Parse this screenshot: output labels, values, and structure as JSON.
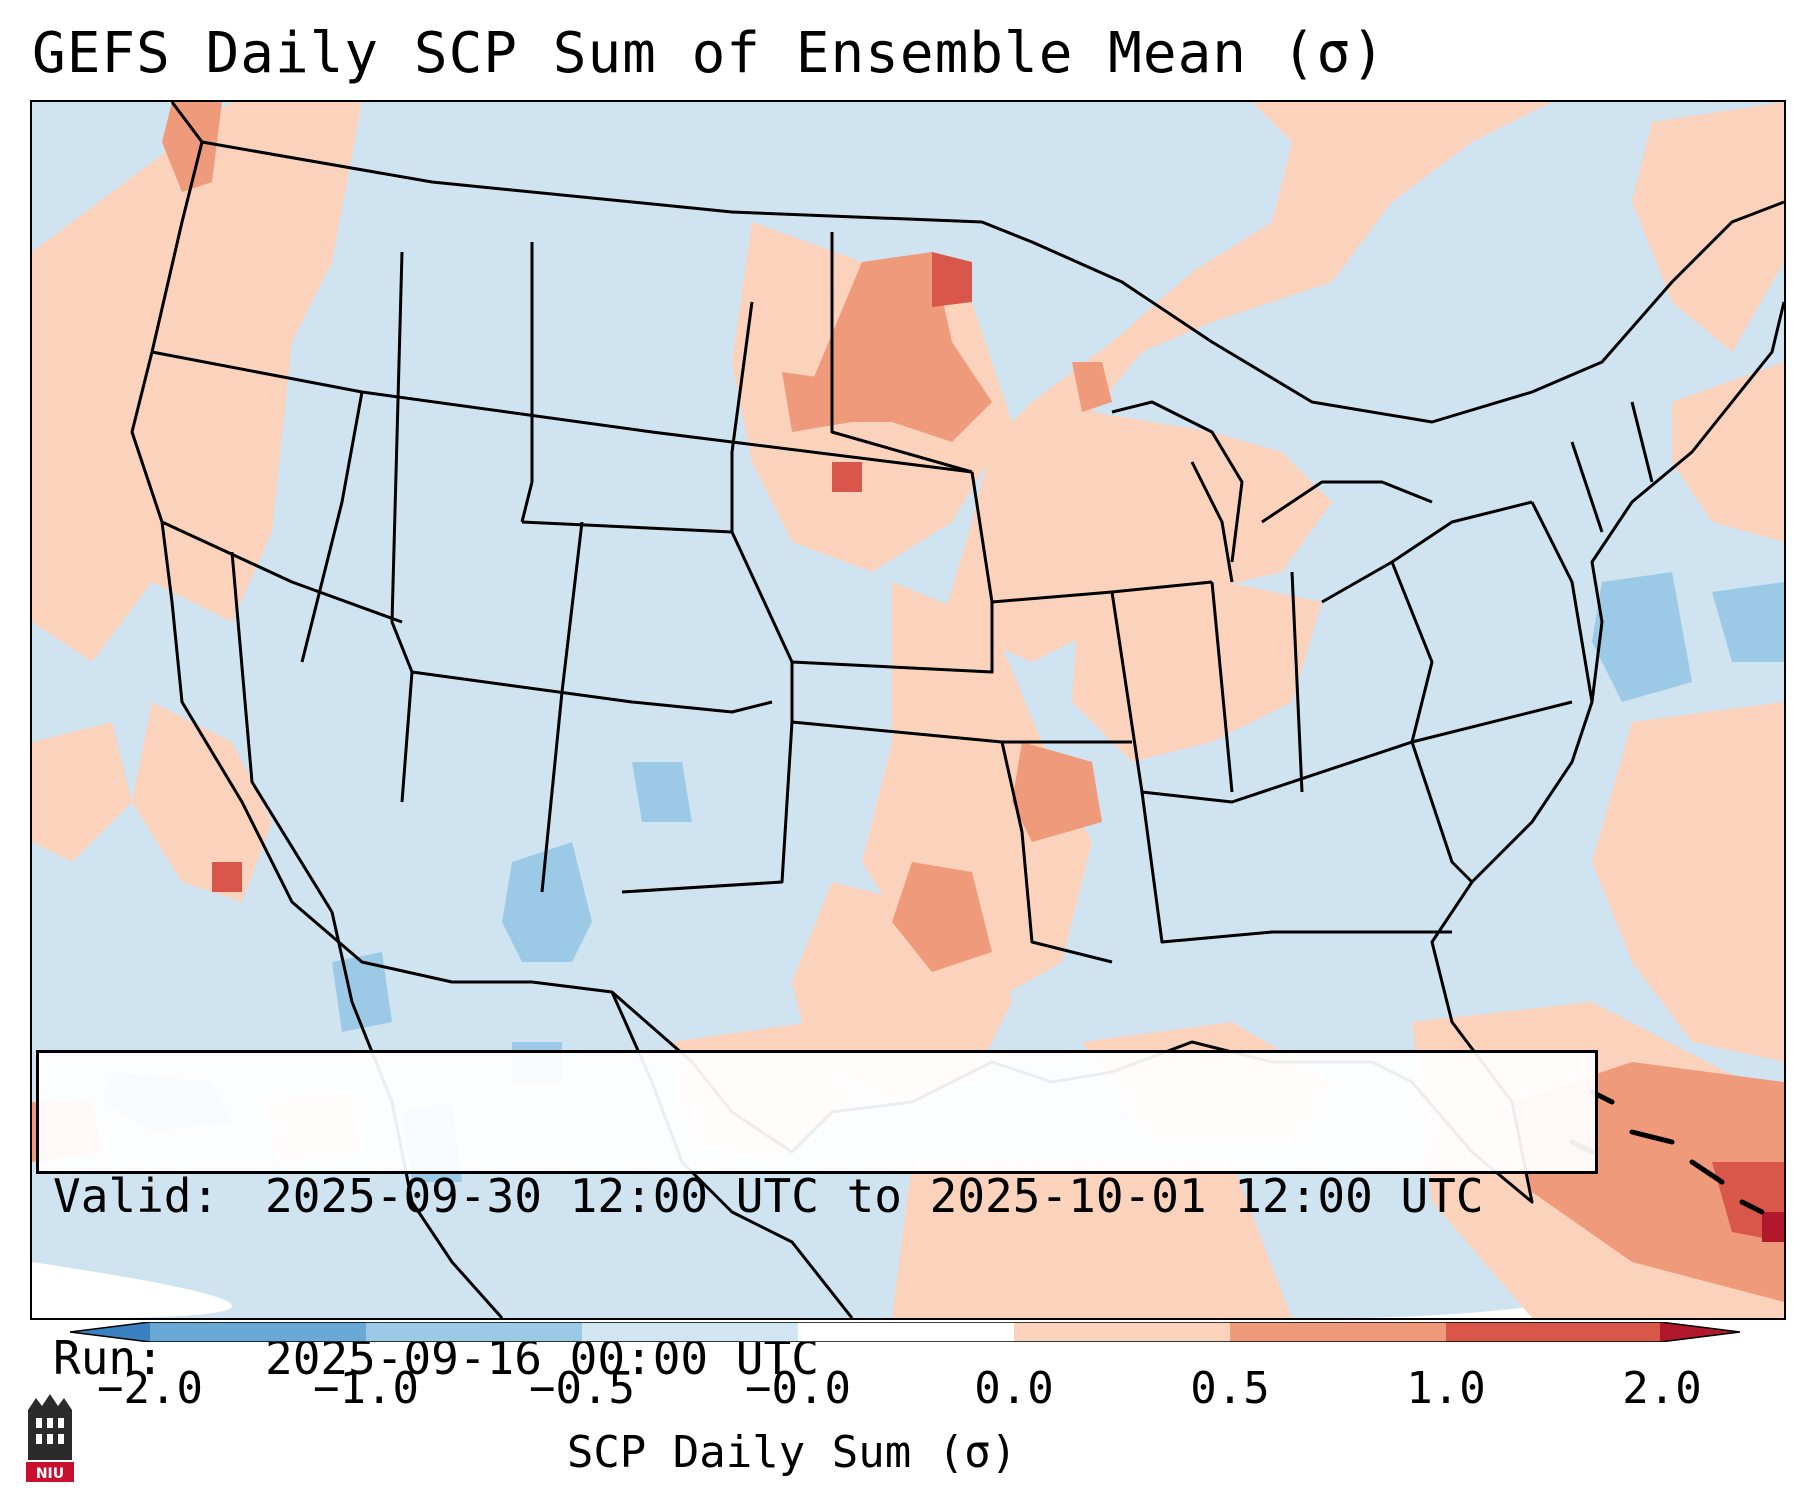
{
  "title": "GEFS Daily SCP Sum of Ensemble Mean (σ)",
  "info": {
    "valid_label": "Valid:",
    "valid_value": "2025-09-30 12:00 UTC to 2025-10-01 12:00 UTC",
    "run_label": "Run:",
    "run_value": "2025-09-16 00:00 UTC"
  },
  "colorbar": {
    "label": "SCP Daily Sum (σ)",
    "ticks": [
      "−2.0",
      "−1.0",
      "−0.5",
      "−0.0",
      "0.0",
      "0.5",
      "1.0",
      "2.0"
    ],
    "colors": [
      "#3a7fbf",
      "#6aa8d6",
      "#9ccae6",
      "#d2e5f2",
      "#ffffff",
      "#fbd3bd",
      "#ef9a7b",
      "#d9564a",
      "#b2182b"
    ]
  },
  "logo_text": "NIU"
}
